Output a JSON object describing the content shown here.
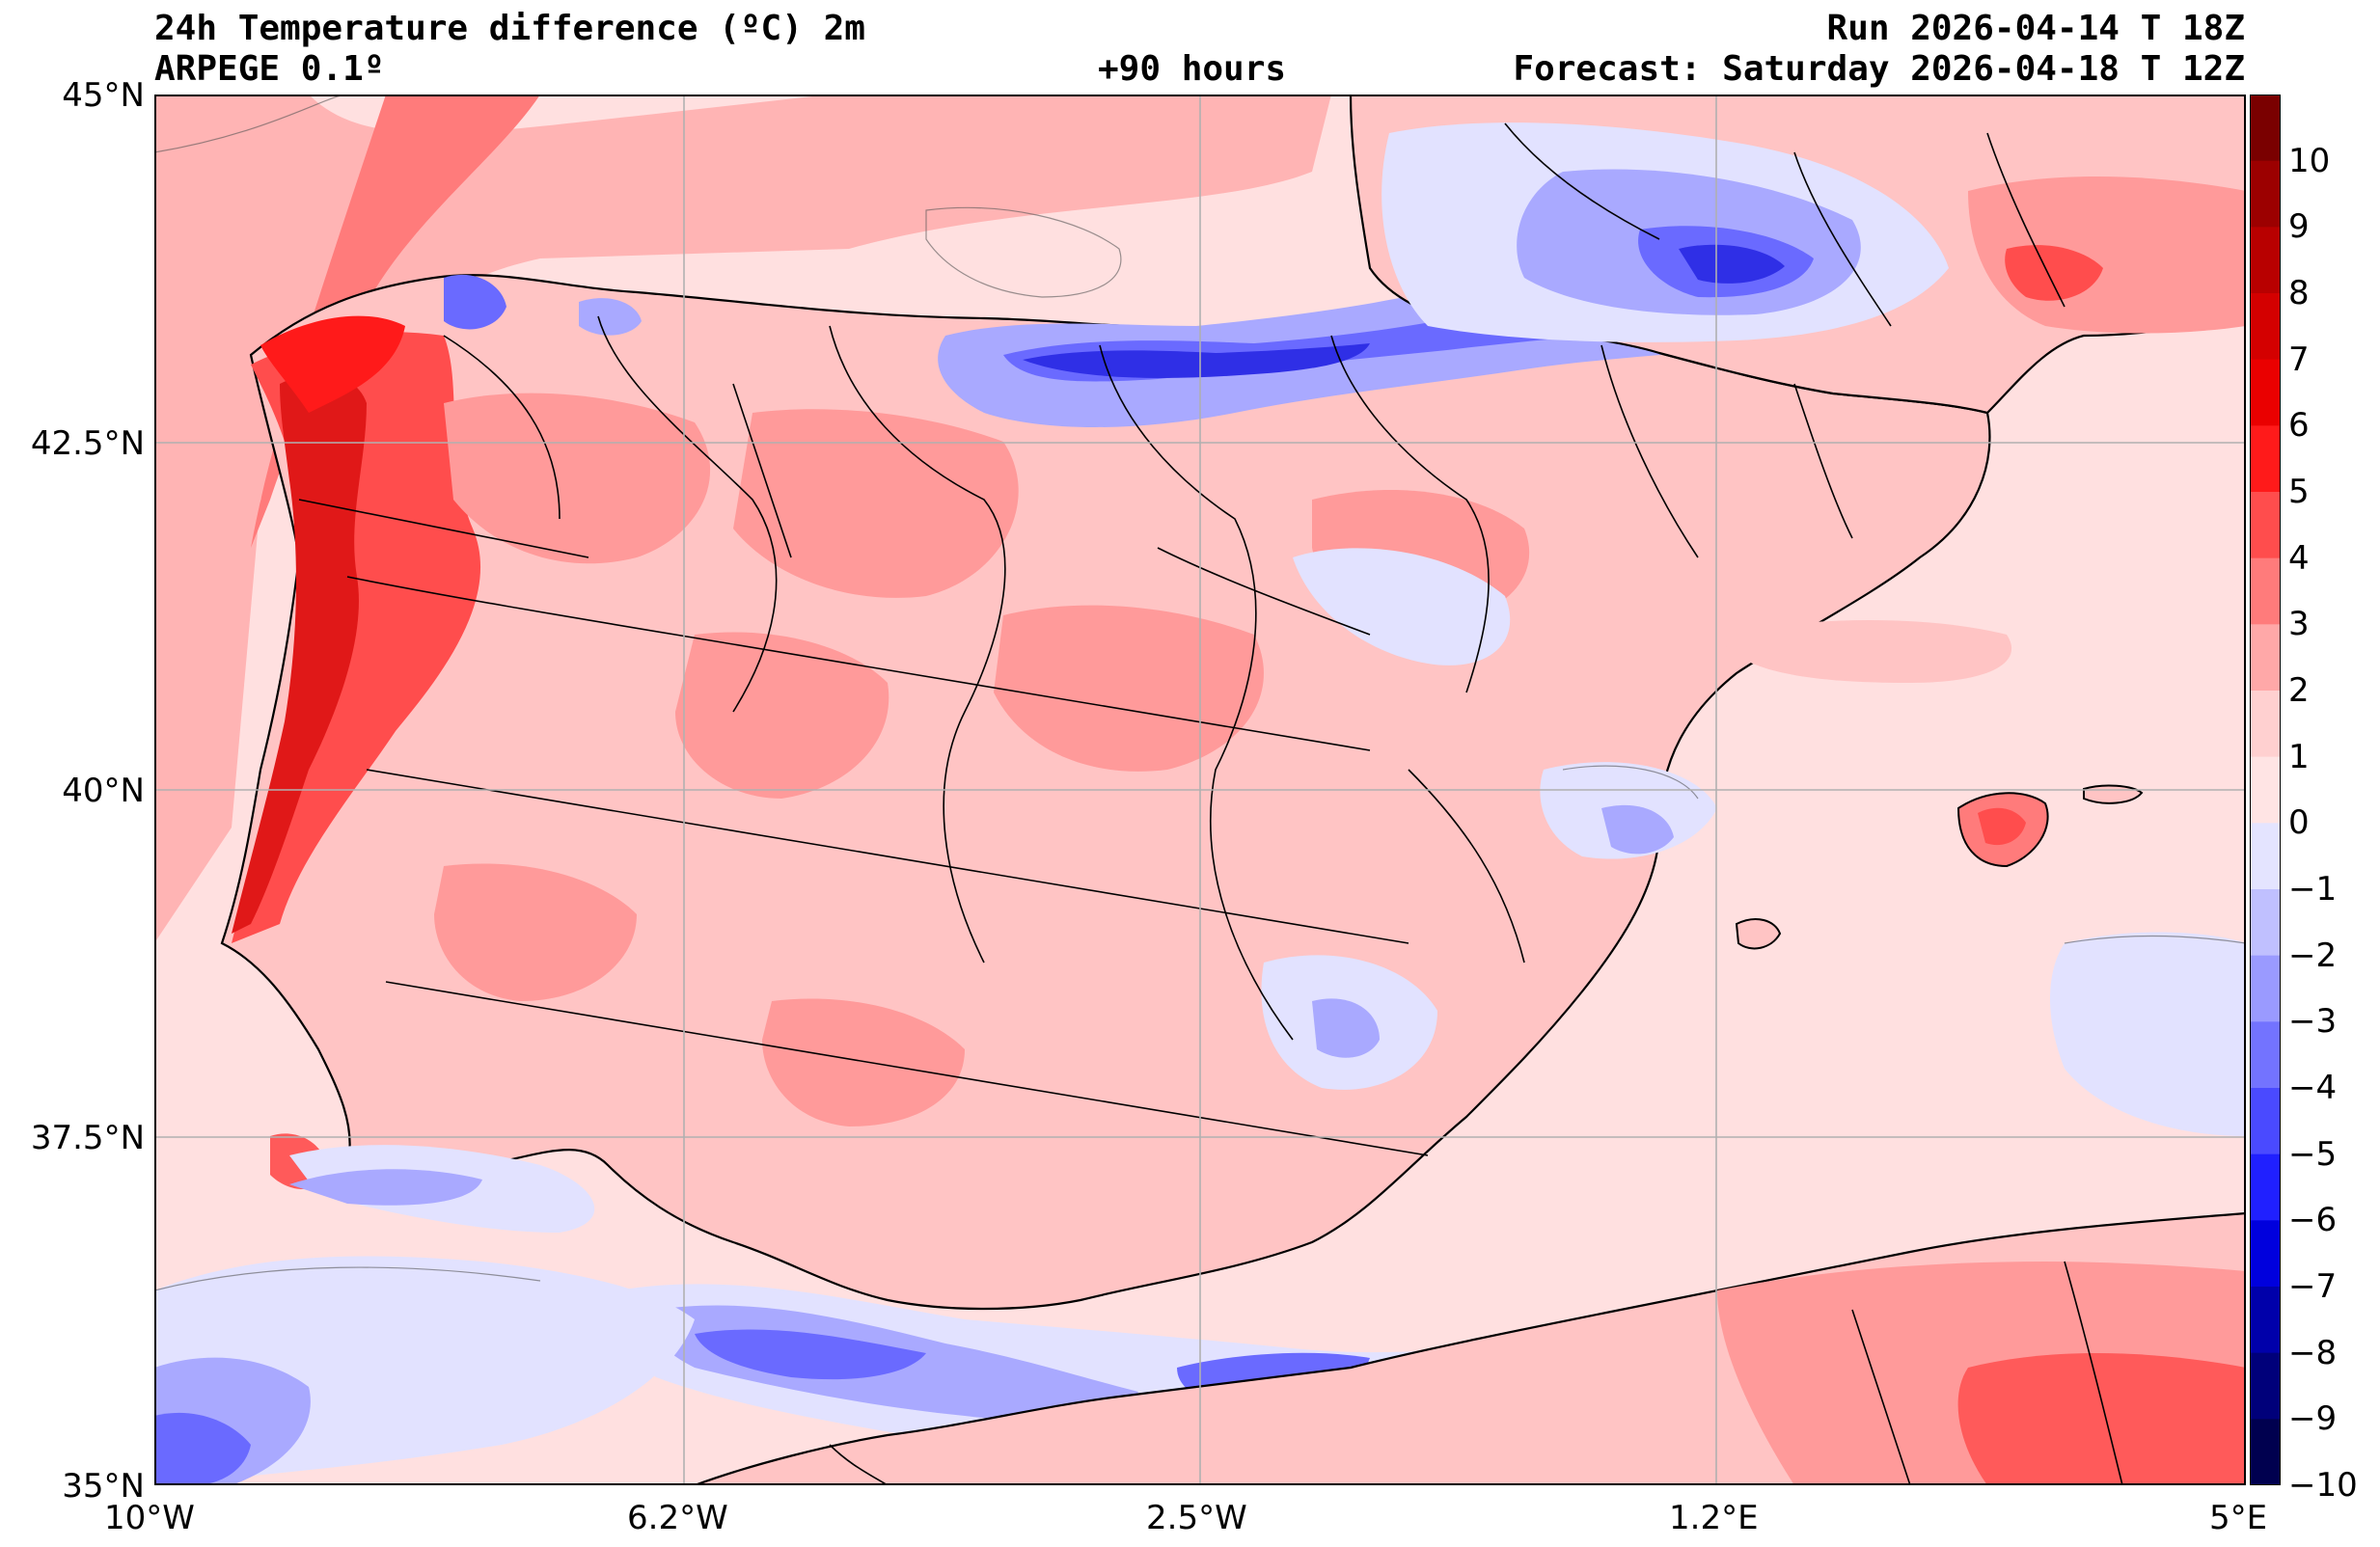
{
  "header": {
    "title": "24h Temperature difference (ºC) 2m",
    "model": "ARPEGE 0.1º",
    "lead_time": "+90 hours",
    "run": "Run 2026-04-14 T 18Z",
    "forecast": "Forecast: Saturday 2026-04-18 T 12Z"
  },
  "axes": {
    "latitudes": [
      "45°N",
      "42.5°N",
      "40°N",
      "37.5°N",
      "35°N"
    ],
    "longitudes": [
      "10°W",
      "6.2°W",
      "2.5°W",
      "1.2°E",
      "5°E"
    ]
  },
  "colorbar": {
    "ticks": [
      "10",
      "9",
      "8",
      "7",
      "6",
      "5",
      "4",
      "3",
      "2",
      "1",
      "0",
      "−1",
      "−2",
      "−3",
      "−4",
      "−5",
      "−6",
      "−7",
      "−8",
      "−9",
      "−10"
    ],
    "colors_top_to_bottom": [
      "#7a0000",
      "#9c0000",
      "#b80000",
      "#d40000",
      "#ea0000",
      "#ff1a1a",
      "#ff4d4d",
      "#ff7b7b",
      "#ffa8a8",
      "#ffd0d0",
      "#ffe4e4",
      "#e4e4ff",
      "#c0c0ff",
      "#9a9aff",
      "#7373ff",
      "#4a4aff",
      "#2020ff",
      "#0000dd",
      "#0000aa",
      "#00007a",
      "#00004f"
    ]
  },
  "map": {
    "colors": {
      "sea_warm": "#ffe0e0",
      "land": "#ffc4c4",
      "warm": "#ff9a9a",
      "hot": "#ff5a5a",
      "very_hot": "#e01818",
      "cool": "#e2e2ff",
      "cold": "#a9a9ff",
      "colder": "#6a6aff",
      "coldest": "#2f2fe6",
      "atlantic_pink": "#ffb4b4"
    }
  }
}
